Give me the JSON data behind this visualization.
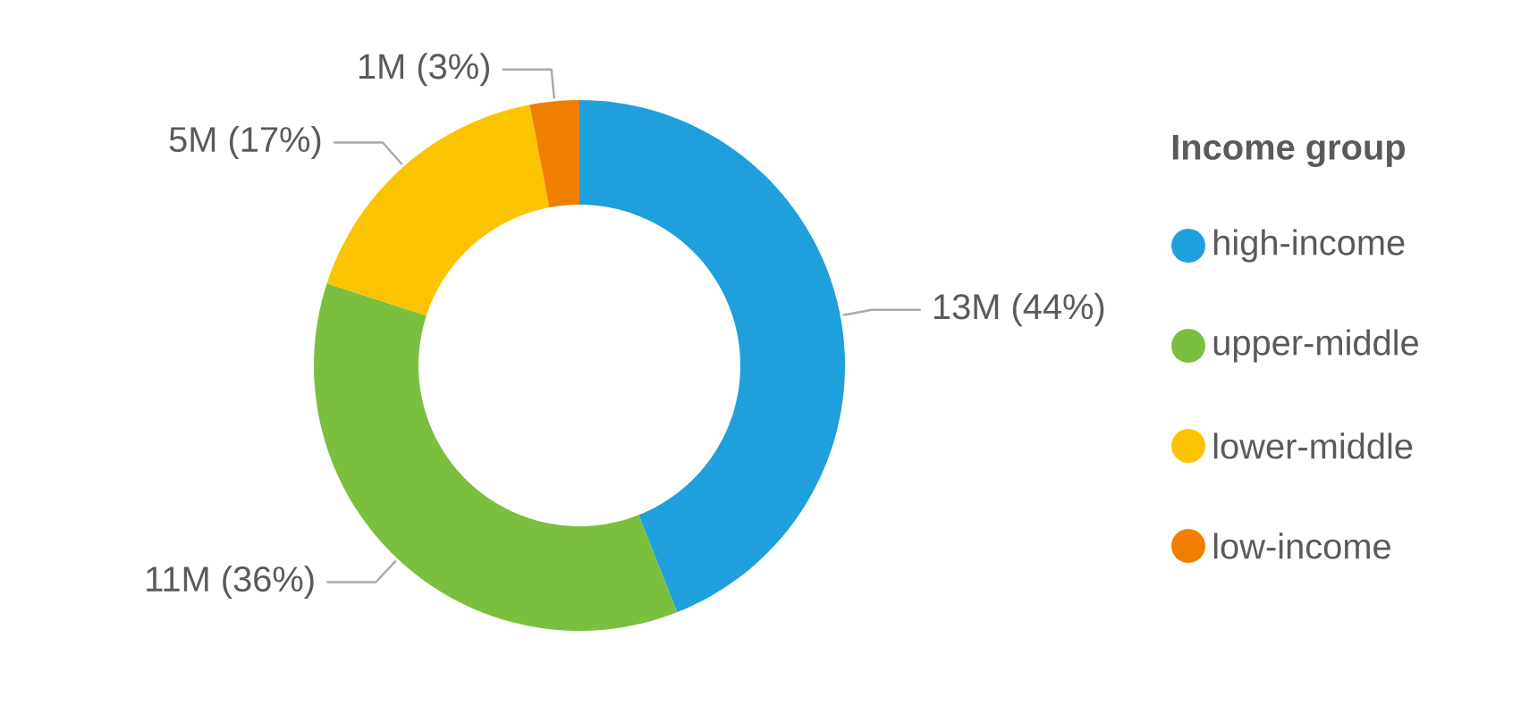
{
  "chart_data": {
    "type": "donut",
    "legend_title": "Income group",
    "legend": "right",
    "categories": [
      "high-income",
      "upper-middle",
      "lower-middle",
      "low-income"
    ],
    "values": [
      44,
      36,
      17,
      3
    ],
    "colors": [
      "#1f9fdb",
      "#7bbf3e",
      "#fcc400",
      "#f07f00"
    ],
    "value_labels": [
      "13M (44%)",
      "11M (36%)",
      "5M (17%)",
      "1M (3%)"
    ]
  }
}
